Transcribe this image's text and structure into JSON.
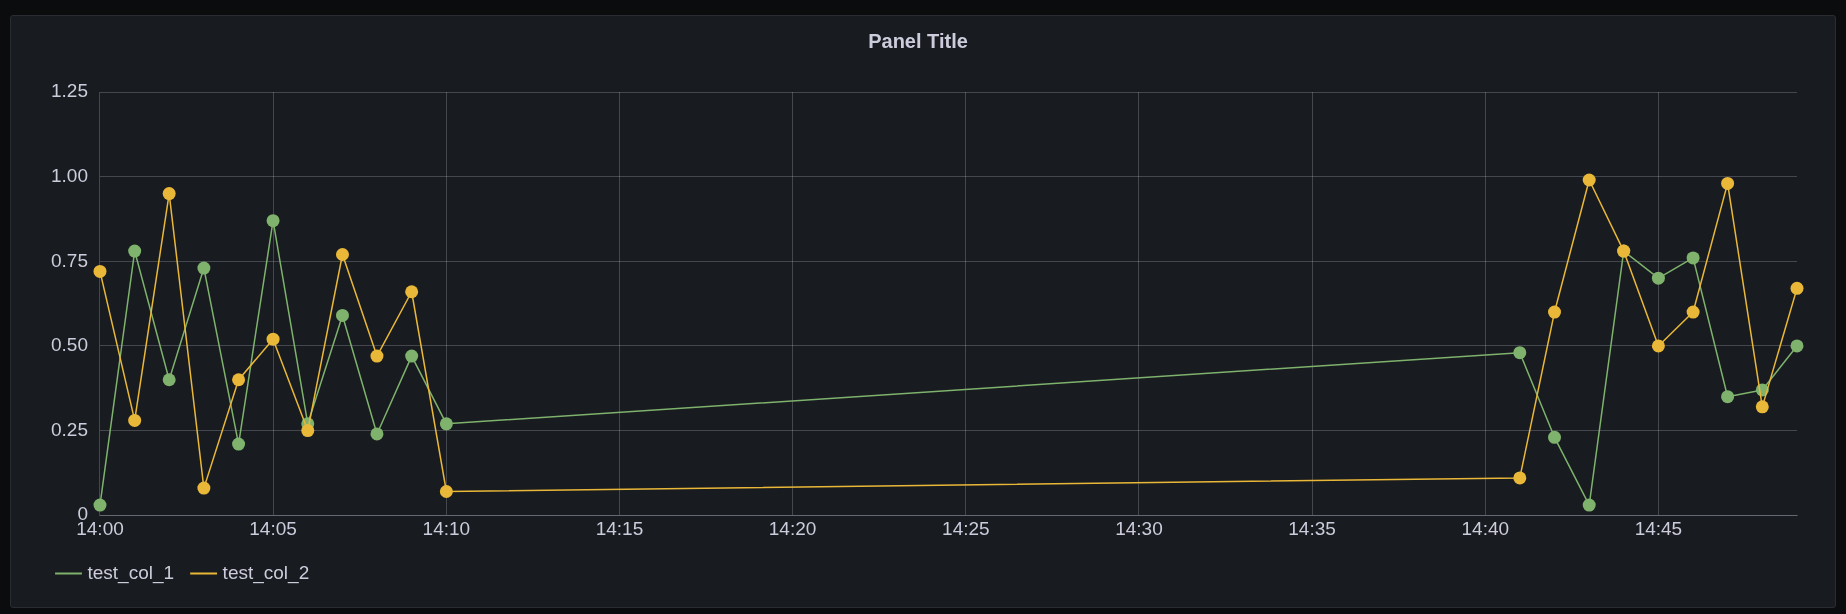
{
  "chart_data": {
    "type": "line",
    "title": "Panel Title",
    "x": [
      14,
      14.0167,
      14.0333,
      14.05,
      14.0667,
      14.0833,
      14.1,
      14.1167,
      14.1333,
      14.15,
      14.1667,
      14.6833,
      14.7,
      14.7167,
      14.7333,
      14.75,
      14.7667,
      14.7833,
      14.8,
      14.8167
    ],
    "xlim": [
      14,
      14.8167
    ],
    "xticks": [
      {
        "value": 14,
        "label": "14:00"
      },
      {
        "value": 14.0833,
        "label": "14:05"
      },
      {
        "value": 14.1667,
        "label": "14:10"
      },
      {
        "value": 14.25,
        "label": "14:15"
      },
      {
        "value": 14.3333,
        "label": "14:20"
      },
      {
        "value": 14.4167,
        "label": "14:25"
      },
      {
        "value": 14.5,
        "label": "14:30"
      },
      {
        "value": 14.5833,
        "label": "14:35"
      },
      {
        "value": 14.6667,
        "label": "14:40"
      },
      {
        "value": 14.75,
        "label": "14:45"
      }
    ],
    "ylim": [
      0,
      1.25
    ],
    "yticks": [
      0,
      0.25,
      {
        "value": 0.5,
        "label": "0.50"
      },
      0.75,
      {
        "value": 1,
        "label": "1.00"
      },
      1.25
    ],
    "series": [
      {
        "name": "test_col_1",
        "color": "#7eb26d",
        "values": [
          0.03,
          0.78,
          0.4,
          0.73,
          0.21,
          0.87,
          0.27,
          0.59,
          0.24,
          0.47,
          0.27,
          0.48,
          0.23,
          0.03,
          0.78,
          0.7,
          0.76,
          0.35,
          0.37,
          0.5
        ]
      },
      {
        "name": "test_col_2",
        "color": "#eab839",
        "values": [
          0.72,
          0.28,
          0.95,
          0.08,
          0.4,
          0.52,
          0.25,
          0.77,
          0.47,
          0.66,
          0.07,
          0.11,
          0.6,
          0.99,
          0.78,
          0.5,
          0.6,
          0.98,
          0.32,
          0.67
        ]
      }
    ],
    "grid": true,
    "legend": "bottom left",
    "marker": "circle",
    "line_style": "solid"
  }
}
